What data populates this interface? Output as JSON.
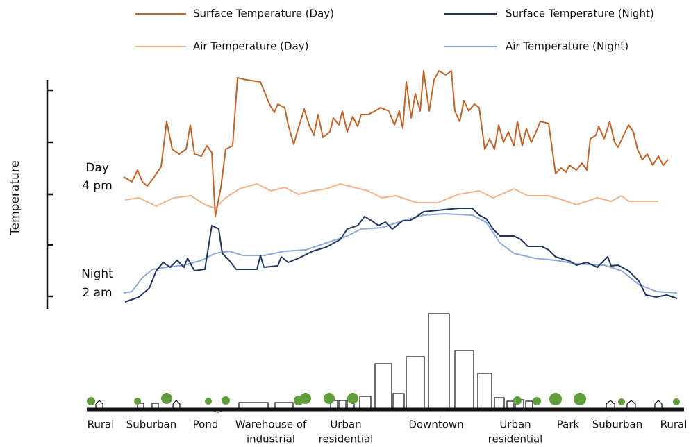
{
  "legend": [
    {
      "label": "Surface Temperature (Day)",
      "color": "#c0642a"
    },
    {
      "label": "Surface Temperature (Night)",
      "color": "#1f3560"
    },
    {
      "label": "Air Temperature (Day)",
      "color": "#f0b48c"
    },
    {
      "label": "Air Temperature (Night)",
      "color": "#8eaadb"
    }
  ],
  "y_axis_label": "Temperature",
  "time_labels": {
    "day": [
      "Day",
      "4 pm"
    ],
    "night": [
      "Night",
      "2 am"
    ]
  },
  "zones": [
    [
      "Rural"
    ],
    [
      "Suburban"
    ],
    [
      "Pond"
    ],
    [
      "Warehouse of",
      "industrial"
    ],
    [
      "Urban",
      "residential"
    ],
    [
      "Downtown"
    ],
    [
      "Urban",
      "residential"
    ],
    [
      "Park"
    ],
    [
      "Suburban"
    ],
    [
      "Rural"
    ]
  ]
}
